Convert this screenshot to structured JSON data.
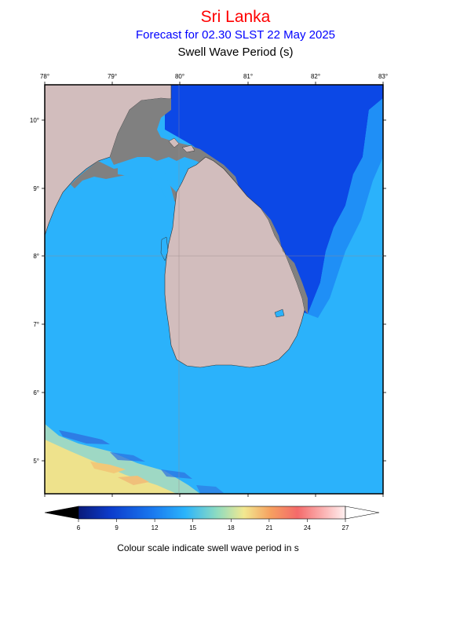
{
  "header": {
    "title": "Sri Lanka",
    "subtitle": "Forecast for  02.30 SLST 22 May 2025",
    "parameter": "Swell Wave Period (s)"
  },
  "map": {
    "region": "Sri Lanka",
    "lon_ticks": [
      "78°",
      "79°",
      "80°",
      "81°",
      "82°",
      "83°"
    ],
    "lat_ticks": [
      "10°",
      "9°",
      "8°",
      "7°",
      "6°",
      "5°"
    ],
    "colors": {
      "land": "#d2bdbd",
      "coast_grey": "#808080",
      "deep_blue": "#0c48e6",
      "mid_blue": "#1a80f5",
      "light_blue": "#2bb2fb",
      "pale_yellow": "#f0e68c",
      "pale_green": "#a8dcbc"
    }
  },
  "colorbar": {
    "ticks": [
      "6",
      "9",
      "12",
      "15",
      "18",
      "21",
      "24",
      "27"
    ],
    "caption": "Colour scale indicate swell wave period in s"
  }
}
